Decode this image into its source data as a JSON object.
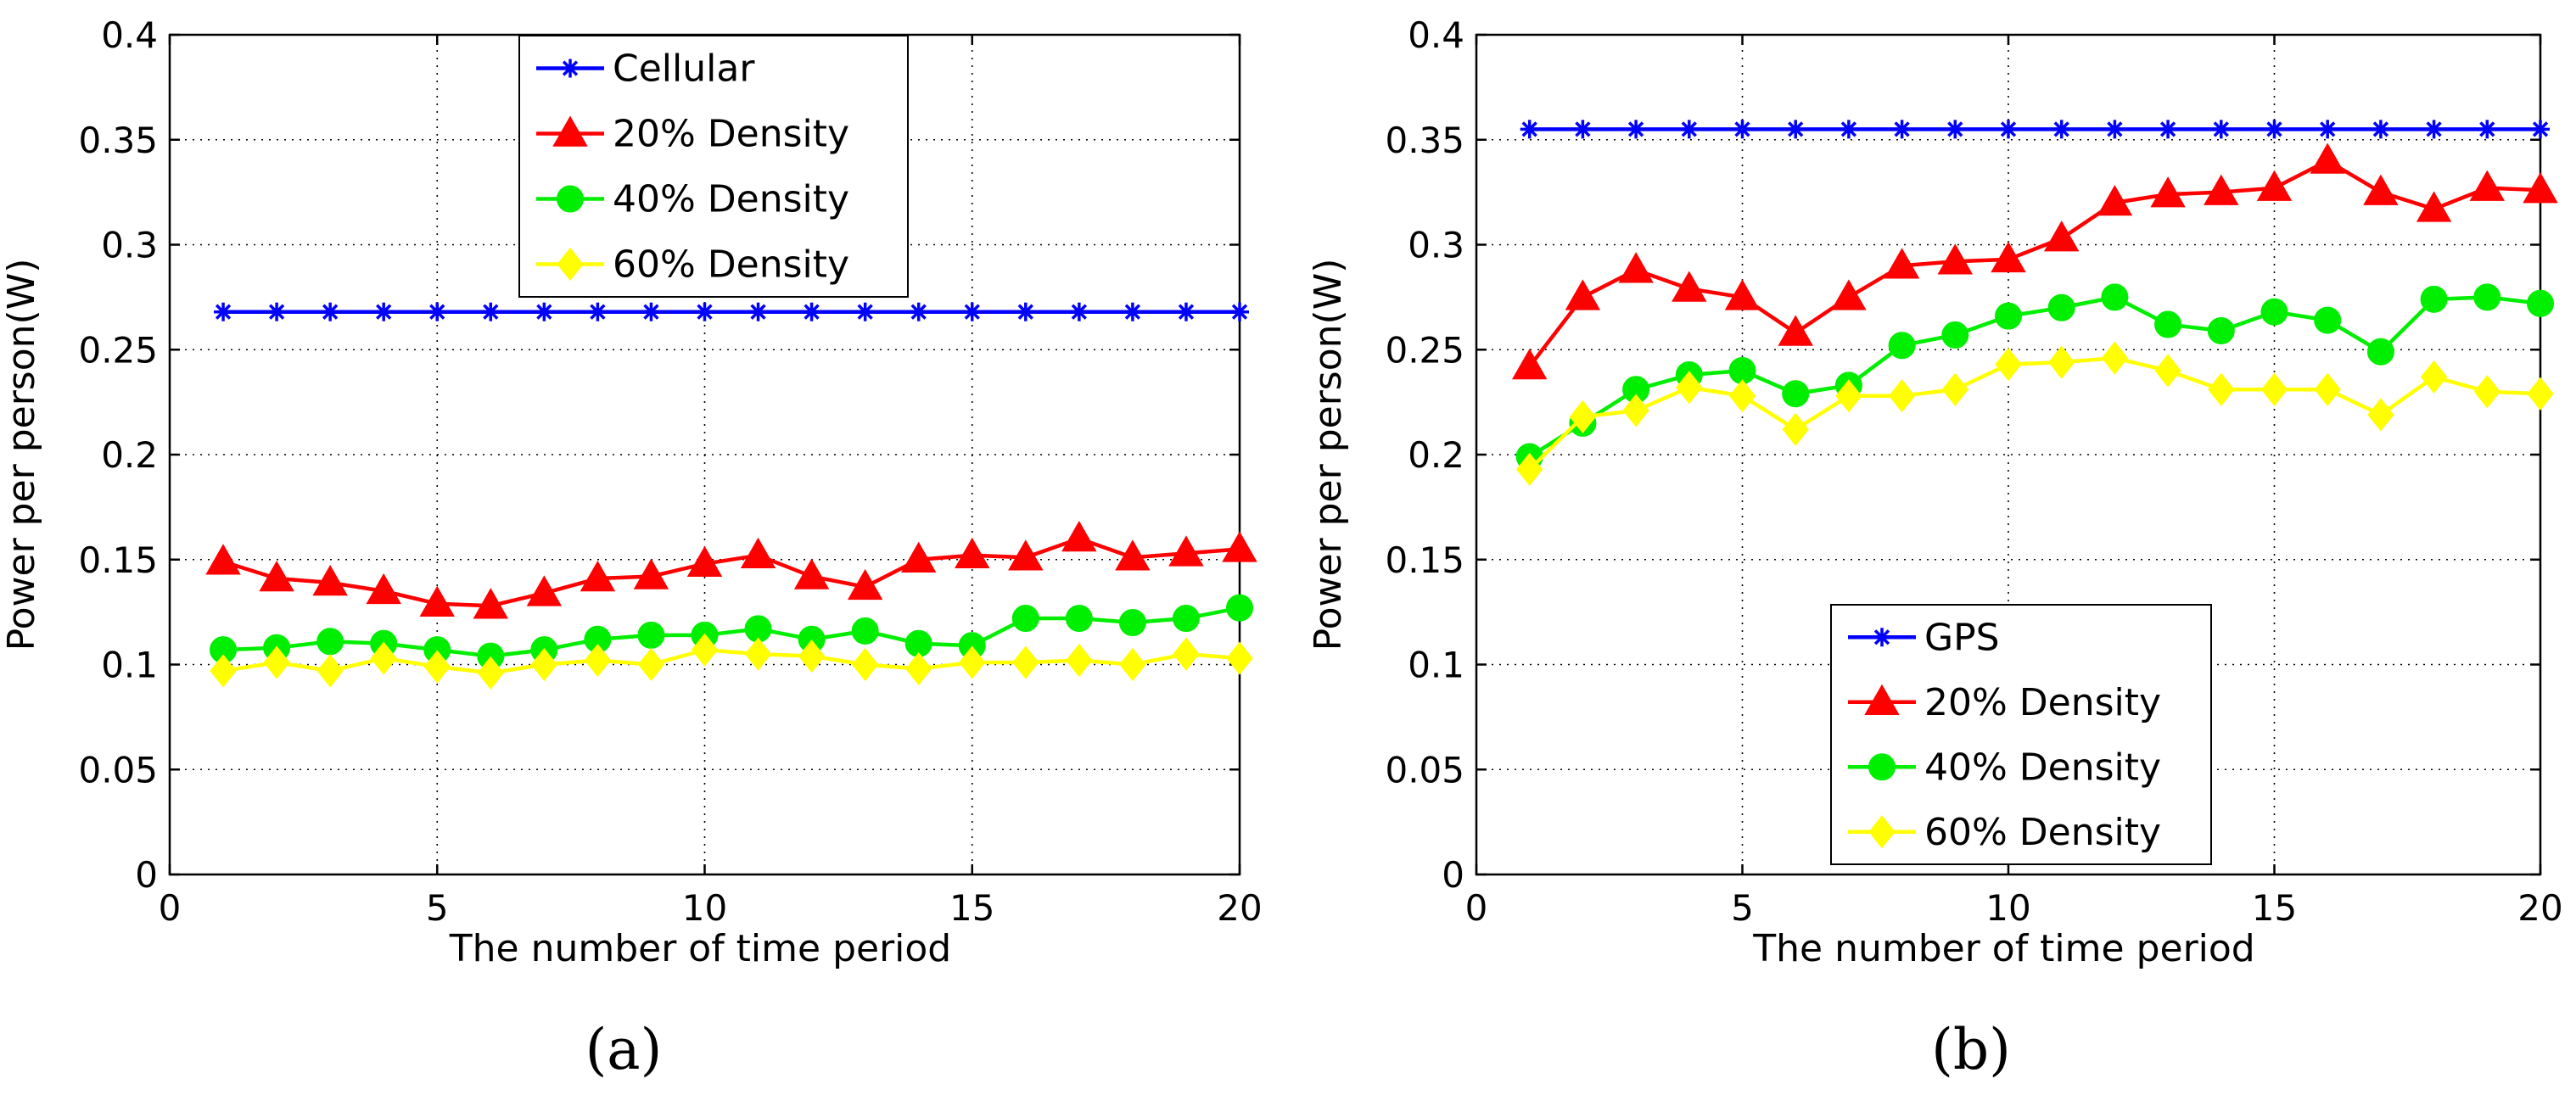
{
  "chart_data": [
    {
      "type": "line",
      "panel_label": "(a)",
      "title": "",
      "xlabel": "The number of time period",
      "ylabel": "Power per person(W)",
      "xlim": [
        0,
        20
      ],
      "ylim": [
        0,
        0.4
      ],
      "xticks": [
        0,
        5,
        10,
        15,
        20
      ],
      "xtick_labels": [
        "0",
        "5",
        "10",
        "15",
        "20"
      ],
      "yticks": [
        0,
        0.05,
        0.1,
        0.15,
        0.2,
        0.25,
        0.3,
        0.35,
        0.4
      ],
      "ytick_labels": [
        "0",
        "0.05",
        "0.1",
        "0.15",
        "0.2",
        "0.25",
        "0.3",
        "0.35",
        "0.4"
      ],
      "grid": true,
      "legend_position": "top-center",
      "x": [
        1,
        2,
        3,
        4,
        5,
        6,
        7,
        8,
        9,
        10,
        11,
        12,
        13,
        14,
        15,
        16,
        17,
        18,
        19,
        20
      ],
      "series": [
        {
          "name": "Cellular",
          "color": "#0000ff",
          "marker": "asterisk",
          "values": [
            0.268,
            0.268,
            0.268,
            0.268,
            0.268,
            0.268,
            0.268,
            0.268,
            0.268,
            0.268,
            0.268,
            0.268,
            0.268,
            0.268,
            0.268,
            0.268,
            0.268,
            0.268,
            0.268,
            0.268
          ]
        },
        {
          "name": "20% Density",
          "color": "#ff0000",
          "marker": "triangle",
          "values": [
            0.149,
            0.141,
            0.139,
            0.135,
            0.129,
            0.128,
            0.134,
            0.141,
            0.142,
            0.148,
            0.152,
            0.142,
            0.137,
            0.15,
            0.152,
            0.151,
            0.16,
            0.151,
            0.153,
            0.155
          ]
        },
        {
          "name": "40% Density",
          "color": "#00ee00",
          "marker": "circle",
          "values": [
            0.107,
            0.108,
            0.111,
            0.11,
            0.107,
            0.104,
            0.107,
            0.112,
            0.114,
            0.114,
            0.117,
            0.112,
            0.116,
            0.11,
            0.109,
            0.122,
            0.122,
            0.12,
            0.122,
            0.127
          ]
        },
        {
          "name": "60% Density",
          "color": "#ffff00",
          "marker": "diamond",
          "values": [
            0.097,
            0.101,
            0.097,
            0.103,
            0.099,
            0.096,
            0.1,
            0.102,
            0.1,
            0.107,
            0.105,
            0.104,
            0.1,
            0.098,
            0.101,
            0.101,
            0.102,
            0.1,
            0.105,
            0.103
          ]
        }
      ]
    },
    {
      "type": "line",
      "panel_label": "(b)",
      "title": "",
      "xlabel": "The number of time period",
      "ylabel": "Power per person(W)",
      "xlim": [
        0,
        20
      ],
      "ylim": [
        0,
        0.4
      ],
      "xticks": [
        0,
        5,
        10,
        15,
        20
      ],
      "xtick_labels": [
        "0",
        "5",
        "10",
        "15",
        "20"
      ],
      "yticks": [
        0,
        0.05,
        0.1,
        0.15,
        0.2,
        0.25,
        0.3,
        0.35,
        0.4
      ],
      "ytick_labels": [
        "0",
        "0.05",
        "0.1",
        "0.15",
        "0.2",
        "0.25",
        "0.3",
        "0.35",
        "0.4"
      ],
      "grid": true,
      "legend_position": "bottom-center",
      "x": [
        1,
        2,
        3,
        4,
        5,
        6,
        7,
        8,
        9,
        10,
        11,
        12,
        13,
        14,
        15,
        16,
        17,
        18,
        19,
        20
      ],
      "series": [
        {
          "name": "GPS",
          "color": "#0000ff",
          "marker": "asterisk",
          "values": [
            0.355,
            0.355,
            0.355,
            0.355,
            0.355,
            0.355,
            0.355,
            0.355,
            0.355,
            0.355,
            0.355,
            0.355,
            0.355,
            0.355,
            0.355,
            0.355,
            0.355,
            0.355,
            0.355,
            0.355
          ]
        },
        {
          "name": "20% Density",
          "color": "#ff0000",
          "marker": "triangle",
          "values": [
            0.242,
            0.275,
            0.288,
            0.279,
            0.275,
            0.258,
            0.275,
            0.29,
            0.292,
            0.293,
            0.303,
            0.32,
            0.324,
            0.325,
            0.327,
            0.34,
            0.325,
            0.317,
            0.327,
            0.326
          ]
        },
        {
          "name": "40% Density",
          "color": "#00ee00",
          "marker": "circle",
          "values": [
            0.199,
            0.215,
            0.231,
            0.238,
            0.24,
            0.229,
            0.233,
            0.252,
            0.257,
            0.266,
            0.27,
            0.275,
            0.262,
            0.259,
            0.268,
            0.264,
            0.249,
            0.274,
            0.275,
            0.272
          ]
        },
        {
          "name": "60% Density",
          "color": "#ffff00",
          "marker": "diamond",
          "values": [
            0.193,
            0.218,
            0.221,
            0.232,
            0.228,
            0.212,
            0.228,
            0.228,
            0.231,
            0.243,
            0.244,
            0.246,
            0.24,
            0.231,
            0.231,
            0.231,
            0.219,
            0.237,
            0.23,
            0.229
          ]
        }
      ]
    }
  ]
}
